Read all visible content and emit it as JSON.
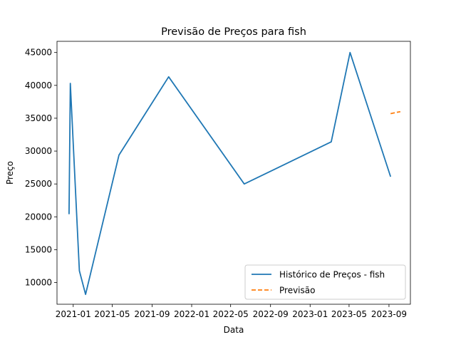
{
  "chart_data": {
    "type": "line",
    "title": "Previsão de Preços para fish",
    "xlabel": "Data",
    "ylabel": "Preço",
    "xlim": [
      "2020-11-12",
      "2023-11-06"
    ],
    "ylim": [
      6700,
      46700
    ],
    "grid": false,
    "legend_position": "lower-right",
    "x_ticks": [
      {
        "value": "2021-01-01",
        "label": "2021-01"
      },
      {
        "value": "2021-05-01",
        "label": "2021-05"
      },
      {
        "value": "2021-09-01",
        "label": "2021-09"
      },
      {
        "value": "2022-01-01",
        "label": "2022-01"
      },
      {
        "value": "2022-05-01",
        "label": "2022-05"
      },
      {
        "value": "2022-09-01",
        "label": "2022-09"
      },
      {
        "value": "2023-01-01",
        "label": "2023-01"
      },
      {
        "value": "2023-05-01",
        "label": "2023-05"
      },
      {
        "value": "2023-09-01",
        "label": "2023-09"
      }
    ],
    "y_ticks": [
      10000,
      15000,
      20000,
      25000,
      30000,
      35000,
      40000,
      45000
    ],
    "series": [
      {
        "name": "Histórico de Preços - fish",
        "color": "#1f77b4",
        "style": "solid",
        "points": [
          {
            "x": "2020-12-19",
            "y": 20400
          },
          {
            "x": "2020-12-23",
            "y": 40300
          },
          {
            "x": "2021-01-20",
            "y": 11800
          },
          {
            "x": "2021-02-08",
            "y": 8200
          },
          {
            "x": "2021-05-22",
            "y": 29400
          },
          {
            "x": "2021-10-22",
            "y": 41300
          },
          {
            "x": "2022-06-12",
            "y": 25000
          },
          {
            "x": "2023-03-07",
            "y": 31400
          },
          {
            "x": "2023-05-04",
            "y": 45000
          },
          {
            "x": "2023-09-06",
            "y": 26100
          }
        ]
      },
      {
        "name": "Previsão",
        "color": "#ff7f0e",
        "style": "dashed",
        "points": [
          {
            "x": "2023-09-06",
            "y": 35700
          },
          {
            "x": "2023-09-20",
            "y": 35850
          },
          {
            "x": "2023-10-06",
            "y": 36000
          }
        ]
      }
    ]
  }
}
